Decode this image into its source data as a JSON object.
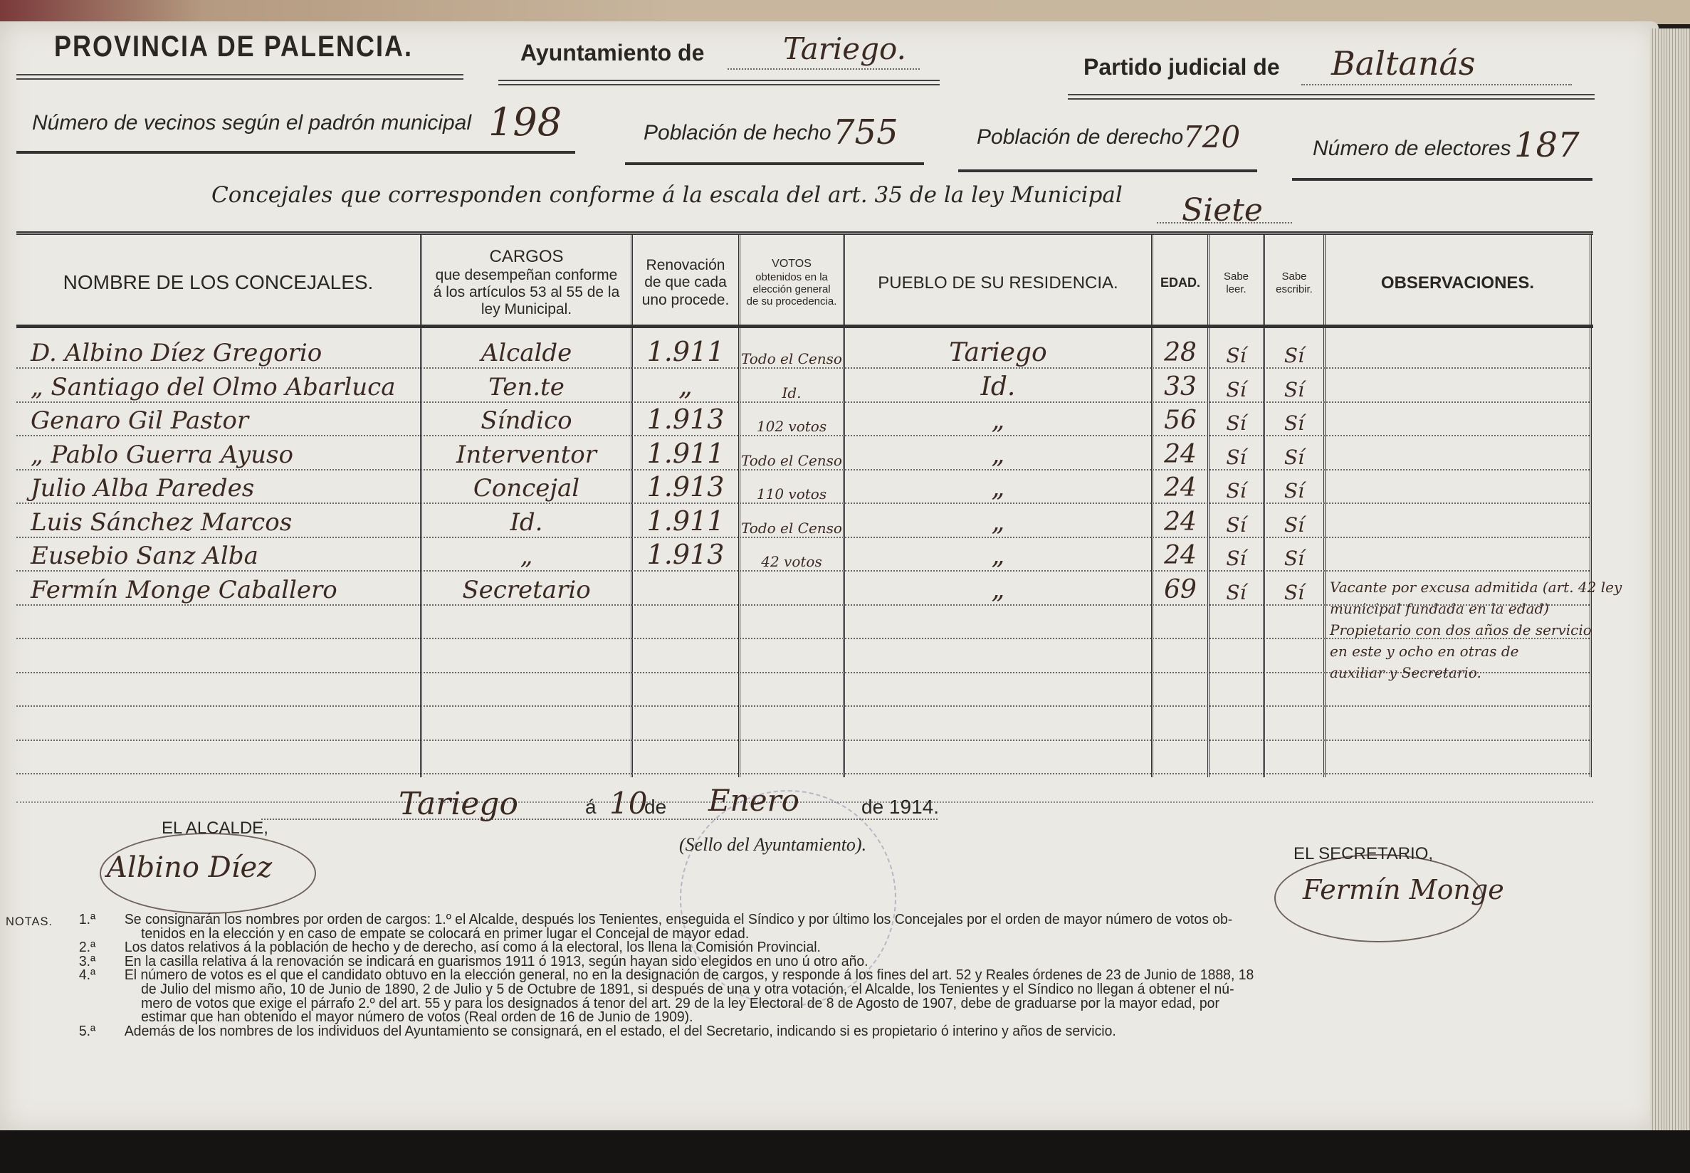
{
  "header": {
    "province": "PROVINCIA DE PALENCIA.",
    "ayuntamiento_label": "Ayuntamiento de",
    "ayuntamiento_value": "Tariego.",
    "partido_label": "Partido judicial de",
    "partido_value": "Baltanás",
    "vecinos_label": "Número de vecinos según el padrón municipal",
    "vecinos_value": "198",
    "poblacion_hecho_label": "Población de hecho",
    "poblacion_hecho_value": "755",
    "poblacion_derecho_label": "Población de derecho",
    "poblacion_derecho_value": "720",
    "electores_label": "Número de electores",
    "electores_value": "187",
    "concejales_label": "Concejales que corresponden conforme á la escala del art. 35 de la ley Municipal",
    "concejales_value": "Siete"
  },
  "table": {
    "columns": [
      "NOMBRE DE LOS CONCEJALES.",
      "CARGOS que desempeñan conforme á los artículos 53 al 55 de la ley Municipal.",
      "Renovación de que cada uno procede.",
      "VOTOS obtenidos en la elección general de su procedencia.",
      "PUEBLO DE SU RESIDENCIA.",
      "EDAD.",
      "Sabe leer.",
      "Sabe escribir.",
      "OBSERVACIONES."
    ],
    "cargos_title": "CARGOS",
    "cargos_sub": "que desempeñan conforme á los artículos 53 al 55 de la ley Municipal.",
    "votos_title": "VOTOS",
    "votos_sub": "obtenidos en la elección general de su procedencia.",
    "rows": [
      {
        "nombre": "D. Albino Díez Gregorio",
        "cargo": "Alcalde",
        "renovacion": "1.911",
        "votos": "Todo el Censo",
        "pueblo": "Tariego",
        "edad": "28",
        "leer": "Sí",
        "escribir": "Sí"
      },
      {
        "nombre": "„ Santiago del Olmo Abarluca",
        "cargo": "Ten.te",
        "renovacion": "„",
        "votos": "Id.",
        "pueblo": "Id.",
        "edad": "33",
        "leer": "Sí",
        "escribir": "Sí"
      },
      {
        "nombre": "Genaro Gil Pastor",
        "cargo": "Síndico",
        "renovacion": "1.913",
        "votos": "102 votos",
        "pueblo": "„",
        "edad": "56",
        "leer": "Sí",
        "escribir": "Sí"
      },
      {
        "nombre": "„ Pablo Guerra Ayuso",
        "cargo": "Interventor",
        "renovacion": "1.911",
        "votos": "Todo el Censo",
        "pueblo": "„",
        "edad": "24",
        "leer": "Sí",
        "escribir": "Sí"
      },
      {
        "nombre": "Julio Alba Paredes",
        "cargo": "Concejal",
        "renovacion": "1.913",
        "votos": "110 votos",
        "pueblo": "„",
        "edad": "24",
        "leer": "Sí",
        "escribir": "Sí"
      },
      {
        "nombre": "Luis Sánchez Marcos",
        "cargo": "Id.",
        "renovacion": "1.911",
        "votos": "Todo el Censo",
        "pueblo": "„",
        "edad": "24",
        "leer": "Sí",
        "escribir": "Sí"
      },
      {
        "nombre": "Eusebio Sanz Alba",
        "cargo": "„",
        "renovacion": "1.913",
        "votos": "42 votos",
        "pueblo": "„",
        "edad": "24",
        "leer": "Sí",
        "escribir": "Sí"
      },
      {
        "nombre": "Fermín Monge Caballero",
        "cargo": "Secretario",
        "renovacion": "",
        "votos": "",
        "pueblo": "„",
        "edad": "69",
        "leer": "Sí",
        "escribir": "Sí"
      }
    ],
    "observaciones": [
      "Vacante por excusa admitida (art. 42 ley",
      "municipal fundada en la edad)",
      "Propietario con dos años de servicio",
      "en este y ocho en otras de",
      "auxiliar y Secretario."
    ]
  },
  "footer": {
    "place": "Tariego",
    "a": "á",
    "day": "10",
    "de1": "de",
    "month": "Enero",
    "year_text": "de 1914.",
    "seal_label": "(Sello del Ayuntamiento).",
    "alcalde_label": "EL ALCALDE,",
    "alcalde_signature": "Albino Díez",
    "secretario_label": "EL SECRETARIO,",
    "secretario_signature": "Fermín Monge"
  },
  "notes": {
    "label": "NOTAS.",
    "items": [
      {
        "num": "1.ª",
        "text": "Se consignarán los nombres por orden de cargos: 1.º el Alcalde, después los Tenientes, enseguida el Síndico y por último los Concejales por el orden de mayor número de votos ob-",
        "cont": [
          "tenidos en la elección y en caso de empate se colocará en primer lugar el Concejal de mayor edad."
        ]
      },
      {
        "num": "2.ª",
        "text": "Los datos relativos á la población de hecho y de derecho, así como á la electoral, los llena la Comisión Provincial.",
        "cont": []
      },
      {
        "num": "3.ª",
        "text": "En la casilla relativa á la renovación se indicará en guarismos 1911 ó 1913, según hayan sido elegidos en uno ú otro año.",
        "cont": []
      },
      {
        "num": "4.ª",
        "text": "El número de votos es el que el candidato obtuvo en la elección general, no en la designación de cargos, y responde á los fines del art. 52 y Reales órdenes de 23 de Junio de 1888, 18",
        "cont": [
          "de Julio del mismo año, 10 de Junio de 1890, 2 de Julio y 5 de Octubre de 1891, si después de una y otra votación, el Alcalde, los Tenientes y el Síndico no llegan á obtener el nú-",
          "mero de votos que exige el párrafo 2.º del art. 55 y para los designados á tenor del art. 29 de la ley Electoral de 8 de Agosto de 1907, debe de graduarse por la mayor edad, por",
          "estimar que han obtenido el mayor número de votos (Real orden de 16 de Junio de 1909)."
        ]
      },
      {
        "num": "5.ª",
        "text": "Además de los nombres de los individuos del Ayuntamiento se consignará, en el estado, el del Secretario, indicando si es propietario ó interino y años de servicio.",
        "cont": []
      }
    ]
  },
  "colors": {
    "paper": "#ebe9e3",
    "print_ink": "#2a2622",
    "hand_ink": "#3a2a22"
  }
}
